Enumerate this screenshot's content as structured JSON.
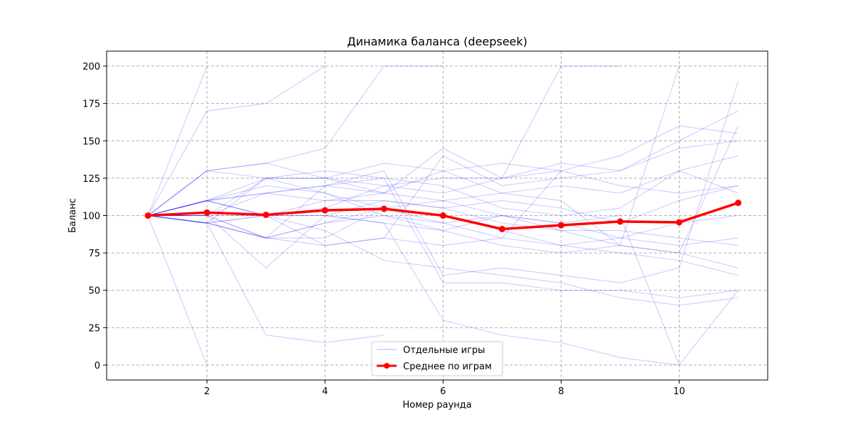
{
  "chart_data": {
    "type": "line",
    "title": "Динамика баланса (deepseek)",
    "xlabel": "Номер раунда",
    "ylabel": "Баланс",
    "xlim": [
      0.3,
      11.5
    ],
    "ylim": [
      -10,
      210
    ],
    "x_ticks": [
      2,
      4,
      6,
      8,
      10
    ],
    "y_ticks": [
      0,
      25,
      50,
      75,
      100,
      125,
      150,
      175,
      200
    ],
    "grid": true,
    "legend": {
      "placement": "lower-center",
      "entries": [
        "Отдельные игры",
        "Среднее по играм"
      ]
    },
    "colors": {
      "individual": "#0000ff",
      "average": "#ff0000"
    },
    "individual_games": [
      {
        "x": [
          1,
          2
        ],
        "y": [
          100,
          200
        ]
      },
      {
        "x": [
          1,
          2
        ],
        "y": [
          100,
          0
        ]
      },
      {
        "x": [
          1,
          2,
          3,
          4
        ],
        "y": [
          100,
          170,
          175,
          200
        ]
      },
      {
        "x": [
          1,
          2,
          3,
          4,
          5
        ],
        "y": [
          100,
          95,
          20,
          15,
          20
        ]
      },
      {
        "x": [
          1,
          2,
          3,
          4,
          5,
          6
        ],
        "y": [
          100,
          130,
          135,
          145,
          200,
          200
        ]
      },
      {
        "x": [
          1,
          2,
          3,
          4,
          5,
          6,
          7,
          8
        ],
        "y": [
          100,
          95,
          85,
          80,
          85,
          80,
          85,
          130
        ]
      },
      {
        "x": [
          1,
          2,
          3,
          4,
          5,
          6,
          7,
          8,
          9
        ],
        "y": [
          100,
          110,
          125,
          125,
          115,
          145,
          125,
          200,
          200
        ]
      },
      {
        "x": [
          1,
          2,
          3,
          4,
          5,
          6,
          7,
          8,
          9,
          10
        ],
        "y": [
          100,
          110,
          100,
          110,
          115,
          110,
          100,
          95,
          100,
          0
        ]
      },
      {
        "x": [
          1,
          2,
          3,
          4,
          5,
          6,
          7,
          8,
          9,
          10
        ],
        "y": [
          100,
          95,
          85,
          85,
          105,
          110,
          115,
          110,
          80,
          200
        ]
      },
      {
        "x": [
          1,
          2,
          3,
          4,
          5,
          6,
          7,
          8,
          9,
          10,
          11
        ],
        "y": [
          100,
          100,
          65,
          100,
          95,
          30,
          20,
          15,
          5,
          0,
          50
        ]
      },
      {
        "x": [
          1,
          2,
          3,
          4,
          5,
          6,
          7,
          8,
          9,
          10,
          11
        ],
        "y": [
          100,
          110,
          120,
          115,
          100,
          90,
          80,
          75,
          80,
          75,
          65
        ]
      },
      {
        "x": [
          1,
          2,
          3,
          4,
          5,
          6,
          7,
          8,
          9,
          10,
          11
        ],
        "y": [
          100,
          100,
          85,
          95,
          100,
          95,
          100,
          95,
          85,
          80,
          85
        ]
      },
      {
        "x": [
          1,
          2,
          3,
          4,
          5,
          6,
          7,
          8,
          9,
          10,
          11
        ],
        "y": [
          100,
          110,
          115,
          120,
          130,
          60,
          65,
          60,
          55,
          65,
          190
        ]
      },
      {
        "x": [
          1,
          2,
          3,
          4,
          5,
          6,
          7,
          8,
          9,
          10,
          11
        ],
        "y": [
          100,
          130,
          135,
          125,
          135,
          130,
          135,
          130,
          140,
          160,
          155
        ]
      },
      {
        "x": [
          1,
          2,
          3,
          4,
          5,
          6,
          7,
          8,
          9,
          10,
          11
        ],
        "y": [
          100,
          95,
          100,
          105,
          120,
          115,
          125,
          135,
          130,
          150,
          170
        ]
      },
      {
        "x": [
          1,
          2,
          3,
          4,
          5,
          6,
          7,
          8,
          9,
          10,
          11
        ],
        "y": [
          100,
          100,
          85,
          120,
          125,
          120,
          105,
          100,
          105,
          130,
          115
        ]
      },
      {
        "x": [
          1,
          2,
          3,
          4,
          5,
          6,
          7,
          8,
          9,
          10,
          11
        ],
        "y": [
          100,
          95,
          85,
          95,
          105,
          100,
          90,
          80,
          75,
          70,
          60
        ]
      },
      {
        "x": [
          1,
          2,
          3,
          4,
          5,
          6,
          7,
          8,
          9,
          10,
          11
        ],
        "y": [
          100,
          100,
          100,
          80,
          85,
          140,
          120,
          125,
          130,
          145,
          150
        ]
      },
      {
        "x": [
          1,
          2,
          3,
          4,
          5,
          6,
          7,
          8,
          9,
          10,
          11
        ],
        "y": [
          100,
          95,
          100,
          90,
          70,
          65,
          60,
          55,
          45,
          40,
          45
        ]
      },
      {
        "x": [
          1,
          2,
          3,
          4,
          5,
          6,
          7,
          8,
          9,
          10,
          11
        ],
        "y": [
          100,
          110,
          115,
          110,
          110,
          105,
          95,
          90,
          80,
          75,
          160
        ]
      },
      {
        "x": [
          1,
          2,
          3,
          4,
          5,
          6,
          7,
          8,
          9,
          10,
          11
        ],
        "y": [
          100,
          95,
          125,
          130,
          125,
          55,
          55,
          50,
          50,
          45,
          50
        ]
      },
      {
        "x": [
          1,
          2,
          3,
          4,
          5,
          6,
          7,
          8,
          9,
          10,
          11
        ],
        "y": [
          100,
          130,
          125,
          115,
          105,
          95,
          85,
          80,
          85,
          95,
          100
        ]
      },
      {
        "x": [
          1,
          2,
          3,
          4,
          5,
          6,
          7,
          8,
          9,
          10,
          11
        ],
        "y": [
          100,
          110,
          100,
          100,
          110,
          105,
          110,
          105,
          95,
          110,
          120
        ]
      },
      {
        "x": [
          1,
          2,
          3,
          4,
          5,
          6,
          7,
          8,
          9,
          10,
          11
        ],
        "y": [
          100,
          100,
          125,
          125,
          120,
          125,
          125,
          130,
          120,
          115,
          120
        ]
      },
      {
        "x": [
          1,
          2,
          3,
          4,
          5,
          6,
          7,
          8,
          9,
          10,
          11
        ],
        "y": [
          100,
          110,
          100,
          100,
          95,
          90,
          100,
          90,
          90,
          85,
          80
        ]
      },
      {
        "x": [
          1,
          2,
          3,
          4,
          5,
          6,
          7,
          8,
          9,
          10,
          11
        ],
        "y": [
          100,
          100,
          115,
          120,
          115,
          130,
          115,
          120,
          115,
          130,
          140
        ]
      }
    ],
    "average": {
      "x": [
        1,
        2,
        3,
        4,
        5,
        6,
        7,
        8,
        9,
        10,
        11
      ],
      "y": [
        100,
        102,
        100.5,
        103.5,
        104.5,
        100,
        91,
        93.5,
        96,
        95.5,
        108.5
      ]
    }
  }
}
